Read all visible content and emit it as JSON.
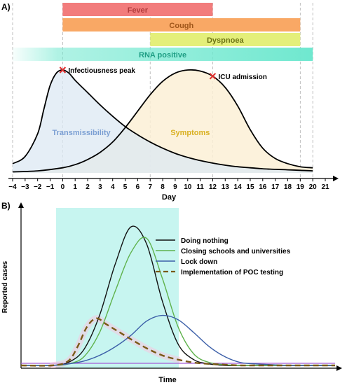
{
  "chart_data": [
    {
      "panel_label": "A)",
      "type": "line",
      "xlabel": "Day",
      "xlim": [
        -4,
        21
      ],
      "ticks": [
        -4,
        -3,
        -2,
        -1,
        0,
        1,
        2,
        3,
        4,
        5,
        6,
        7,
        8,
        9,
        10,
        11,
        12,
        13,
        14,
        15,
        16,
        17,
        18,
        19,
        20,
        21
      ],
      "periods": [
        {
          "label": "Fever",
          "start": 0,
          "end": 12,
          "color": "#f27c7c",
          "text_color": "#b03a3a"
        },
        {
          "label": "Cough",
          "start": 0,
          "end": 19,
          "color": "#f9a865",
          "text_color": "#a0561a"
        },
        {
          "label": "Dyspnoea",
          "start": 7,
          "end": 19,
          "color": "#e4ef7a",
          "text_color": "#6c7314"
        },
        {
          "label": "RNA positive",
          "start": -4,
          "end": 20,
          "color": "#6fe8cf",
          "text_color": "#1e9e84",
          "gradient": true
        }
      ],
      "series": [
        {
          "name": "Transmissibility",
          "label_color": "#7b9fd3",
          "fill": "#dce8f3",
          "x": [
            -4,
            -3,
            -2,
            -1.5,
            -1,
            -0.5,
            0,
            0.5,
            1,
            2,
            3,
            4,
            5,
            6,
            7,
            8,
            9,
            10,
            11,
            12,
            13,
            14,
            15,
            16,
            17,
            18,
            19,
            20
          ],
          "y": [
            0.09,
            0.16,
            0.38,
            0.62,
            0.85,
            0.97,
            1.0,
            0.97,
            0.9,
            0.78,
            0.66,
            0.55,
            0.45,
            0.37,
            0.3,
            0.24,
            0.19,
            0.15,
            0.12,
            0.095,
            0.075,
            0.06,
            0.05,
            0.04,
            0.035,
            0.03,
            0.025,
            0.02
          ]
        },
        {
          "name": "Symptoms",
          "label_color": "#d9b021",
          "fill": "#fbf0d6",
          "x": [
            -4,
            -2,
            0,
            1,
            2,
            3,
            4,
            5,
            6,
            7,
            8,
            9,
            10,
            11,
            12,
            13,
            14,
            15,
            16,
            17,
            18,
            19,
            20
          ],
          "y": [
            0.01,
            0.02,
            0.05,
            0.08,
            0.13,
            0.2,
            0.3,
            0.44,
            0.6,
            0.76,
            0.89,
            0.97,
            1.0,
            0.99,
            0.94,
            0.83,
            0.65,
            0.42,
            0.24,
            0.14,
            0.09,
            0.06,
            0.05
          ]
        }
      ],
      "annotations": [
        {
          "label": "Infectiousness peak",
          "x": 0
        },
        {
          "label": "ICU admission",
          "x": 12
        }
      ]
    },
    {
      "panel_label": "B)",
      "type": "line",
      "xlabel": "Time",
      "ylabel": "Reported cases",
      "shaded_color": "#c7f5f0",
      "legend_position": "top-right",
      "series": [
        {
          "name": "Doing nothing",
          "color": "#111111",
          "dashed": false,
          "x": [
            0,
            10,
            15,
            20,
            25,
            30,
            35,
            40,
            45,
            50,
            55,
            60,
            65,
            70,
            75,
            80,
            85,
            90,
            95,
            100
          ],
          "y": [
            0.01,
            0.01,
            0.03,
            0.12,
            0.36,
            0.72,
            0.98,
            0.86,
            0.46,
            0.16,
            0.05,
            0.02,
            0.01,
            0.01,
            0.01,
            0.01,
            0.01,
            0.01,
            0.01,
            0.01
          ]
        },
        {
          "name": "Closing schools and universities",
          "color": "#5fb24c",
          "dashed": false,
          "x": [
            0,
            10,
            15,
            20,
            25,
            30,
            35,
            40,
            45,
            50,
            55,
            60,
            65,
            70,
            75,
            80,
            85,
            90,
            95,
            100
          ],
          "y": [
            0.01,
            0.01,
            0.02,
            0.07,
            0.24,
            0.53,
            0.8,
            0.9,
            0.62,
            0.28,
            0.09,
            0.03,
            0.015,
            0.01,
            0.01,
            0.01,
            0.01,
            0.01,
            0.01,
            0.01
          ]
        },
        {
          "name": "Lock down",
          "color": "#3c5fa8",
          "dashed": false,
          "x": [
            0,
            10,
            15,
            20,
            25,
            30,
            35,
            40,
            45,
            50,
            55,
            60,
            65,
            70,
            75,
            80,
            85,
            90,
            95,
            100
          ],
          "y": [
            0.01,
            0.01,
            0.02,
            0.04,
            0.08,
            0.14,
            0.22,
            0.32,
            0.36,
            0.33,
            0.24,
            0.14,
            0.07,
            0.03,
            0.02,
            0.015,
            0.01,
            0.01,
            0.01,
            0.01
          ]
        },
        {
          "name": "Implementation of POC testing",
          "color": "#7a5a17",
          "dashed": true,
          "x": [
            0,
            10,
            15,
            18,
            21,
            24,
            27,
            30,
            33,
            36,
            40,
            45,
            50,
            55,
            60,
            65,
            70,
            75,
            80,
            85,
            90,
            95,
            100
          ],
          "y": [
            0.01,
            0.01,
            0.04,
            0.14,
            0.28,
            0.34,
            0.3,
            0.26,
            0.22,
            0.18,
            0.13,
            0.08,
            0.05,
            0.03,
            0.02,
            0.015,
            0.01,
            0.01,
            0.01,
            0.01,
            0.01,
            0.01,
            0.01
          ]
        }
      ],
      "hline_color": "#a45cd6"
    }
  ]
}
